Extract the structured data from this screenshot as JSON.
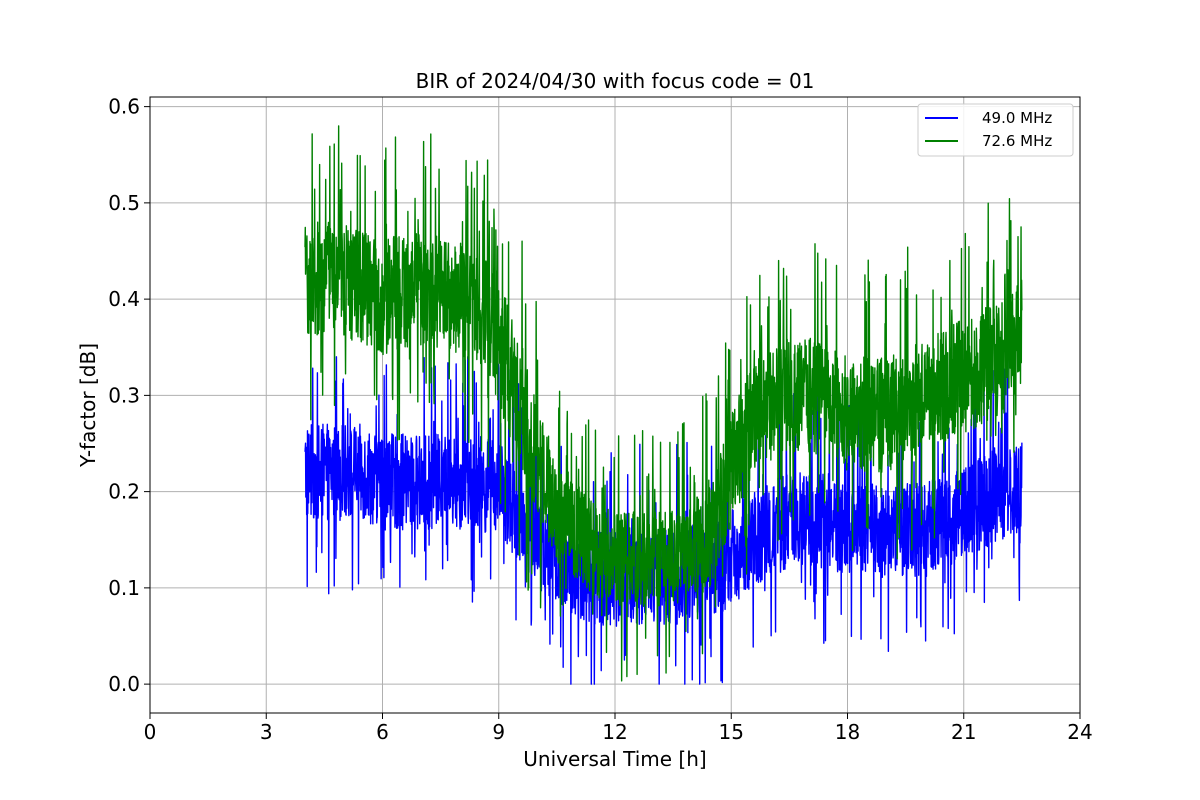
{
  "chart_data": {
    "type": "line",
    "title": "BIR of 2024/04/30 with focus code = 01",
    "xlabel": "Universal Time [h]",
    "ylabel": "Y-factor [dB]",
    "xlim": [
      0,
      24
    ],
    "ylim": [
      -0.03,
      0.61
    ],
    "xticks": [
      0,
      3,
      6,
      9,
      12,
      15,
      18,
      21,
      24
    ],
    "xtick_labels": [
      "0",
      "3",
      "6",
      "9",
      "12",
      "15",
      "18",
      "21",
      "24"
    ],
    "yticks": [
      0.0,
      0.1,
      0.2,
      0.3,
      0.4,
      0.5,
      0.6
    ],
    "ytick_labels": [
      "0.0",
      "0.1",
      "0.2",
      "0.3",
      "0.4",
      "0.5",
      "0.6"
    ],
    "grid": true,
    "legend_position": "top-right",
    "series": [
      {
        "name": "49.0 MHz",
        "color": "#0000ff",
        "x": [
          4.0,
          4.5,
          5.0,
          5.5,
          6.0,
          6.5,
          7.0,
          7.5,
          8.0,
          8.5,
          9.0,
          9.5,
          10.0,
          10.5,
          11.0,
          11.5,
          12.0,
          12.5,
          13.0,
          13.5,
          14.0,
          14.5,
          15.0,
          15.5,
          16.0,
          16.5,
          17.0,
          17.5,
          18.0,
          18.5,
          19.0,
          19.5,
          20.0,
          20.5,
          21.0,
          21.5,
          22.0,
          22.5
        ],
        "center": [
          0.22,
          0.22,
          0.22,
          0.22,
          0.21,
          0.21,
          0.21,
          0.21,
          0.21,
          0.21,
          0.2,
          0.18,
          0.15,
          0.13,
          0.12,
          0.11,
          0.11,
          0.11,
          0.11,
          0.11,
          0.12,
          0.12,
          0.13,
          0.15,
          0.16,
          0.17,
          0.17,
          0.17,
          0.16,
          0.16,
          0.16,
          0.16,
          0.16,
          0.17,
          0.18,
          0.19,
          0.2,
          0.21
        ],
        "spread": [
          0.05,
          0.05,
          0.05,
          0.05,
          0.05,
          0.05,
          0.05,
          0.05,
          0.05,
          0.05,
          0.05,
          0.05,
          0.05,
          0.05,
          0.05,
          0.05,
          0.05,
          0.05,
          0.05,
          0.05,
          0.05,
          0.05,
          0.05,
          0.05,
          0.05,
          0.05,
          0.05,
          0.05,
          0.05,
          0.05,
          0.05,
          0.05,
          0.05,
          0.05,
          0.05,
          0.05,
          0.05,
          0.05
        ],
        "min": 0.0,
        "max": 0.34
      },
      {
        "name": "72.6 MHz",
        "color": "#008000",
        "x": [
          4.0,
          4.5,
          5.0,
          5.5,
          6.0,
          6.5,
          7.0,
          7.5,
          8.0,
          8.5,
          9.0,
          9.5,
          10.0,
          10.5,
          11.0,
          11.5,
          12.0,
          12.5,
          13.0,
          13.5,
          14.0,
          14.5,
          15.0,
          15.5,
          16.0,
          16.5,
          17.0,
          17.5,
          18.0,
          18.5,
          19.0,
          19.5,
          20.0,
          20.5,
          21.0,
          21.5,
          22.0,
          22.5
        ],
        "center": [
          0.42,
          0.42,
          0.42,
          0.41,
          0.4,
          0.41,
          0.41,
          0.41,
          0.4,
          0.39,
          0.36,
          0.3,
          0.23,
          0.18,
          0.16,
          0.14,
          0.13,
          0.13,
          0.13,
          0.13,
          0.14,
          0.16,
          0.22,
          0.27,
          0.29,
          0.3,
          0.3,
          0.29,
          0.28,
          0.28,
          0.28,
          0.29,
          0.3,
          0.31,
          0.32,
          0.33,
          0.34,
          0.36
        ],
        "spread": [
          0.06,
          0.06,
          0.06,
          0.06,
          0.06,
          0.06,
          0.06,
          0.06,
          0.06,
          0.06,
          0.07,
          0.07,
          0.06,
          0.06,
          0.05,
          0.05,
          0.05,
          0.05,
          0.05,
          0.05,
          0.05,
          0.06,
          0.06,
          0.06,
          0.06,
          0.06,
          0.06,
          0.06,
          0.06,
          0.06,
          0.06,
          0.06,
          0.06,
          0.06,
          0.06,
          0.06,
          0.06,
          0.06
        ],
        "min": 0.0,
        "max": 0.58
      }
    ]
  }
}
